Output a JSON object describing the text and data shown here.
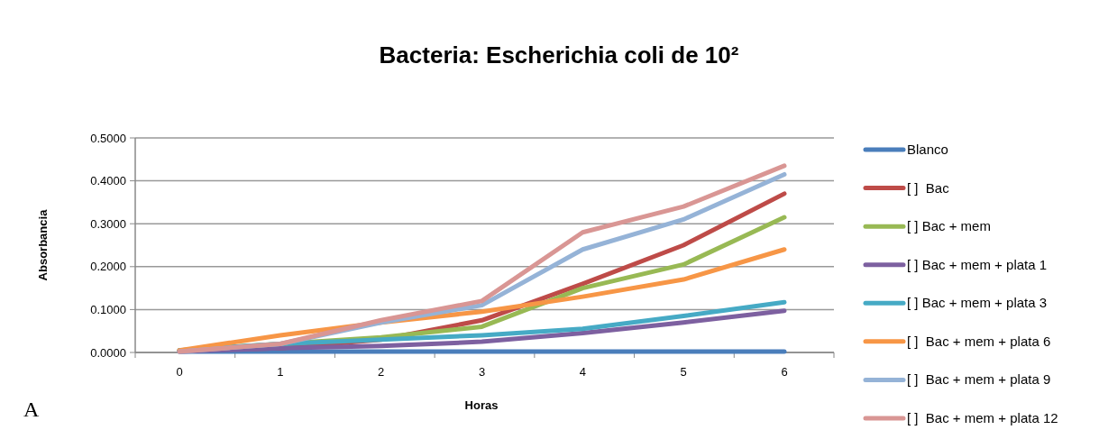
{
  "chart_data": {
    "type": "line",
    "title": "Bacteria: Escherichia coli de 10²",
    "xlabel": "Horas",
    "ylabel": "Absorbancia",
    "categories": [
      "0",
      "1",
      "2",
      "3",
      "4",
      "5",
      "6"
    ],
    "ylim": [
      0,
      0.5
    ],
    "yticks": [
      {
        "value": 0,
        "label": "0.0000"
      },
      {
        "value": 0.1,
        "label": "0.1000"
      },
      {
        "value": 0.2,
        "label": "0.2000"
      },
      {
        "value": 0.3,
        "label": "0.3000"
      },
      {
        "value": 0.4,
        "label": "0.4000"
      },
      {
        "value": 0.5,
        "label": "0.5000"
      }
    ],
    "grid": "y",
    "legend": "right",
    "marker": "none",
    "line_style": "solid",
    "annotations": [
      "A"
    ],
    "series": [
      {
        "name": "Blanco",
        "color": "#4a7ebb",
        "values": [
          0.002,
          0.002,
          0.002,
          0.002,
          0.002,
          0.002,
          0.002
        ]
      },
      {
        "name": "[ ]  Bac",
        "color": "#be4b48",
        "values": [
          0.005,
          0.01,
          0.03,
          0.075,
          0.16,
          0.25,
          0.37
        ]
      },
      {
        "name": "[ ] Bac + mem",
        "color": "#98b954",
        "values": [
          0.005,
          0.02,
          0.035,
          0.06,
          0.15,
          0.205,
          0.315
        ]
      },
      {
        "name": "[ ] Bac + mem + plata 1",
        "color": "#7d60a0",
        "values": [
          0.002,
          0.01,
          0.015,
          0.025,
          0.045,
          0.07,
          0.097
        ]
      },
      {
        "name": "[ ] Bac + mem + plata 3",
        "color": "#46aac5",
        "values": [
          0.005,
          0.02,
          0.03,
          0.04,
          0.055,
          0.085,
          0.117
        ]
      },
      {
        "name": "[ ]  Bac + mem + plata 6",
        "color": "#f79646",
        "values": [
          0.005,
          0.04,
          0.07,
          0.095,
          0.13,
          0.17,
          0.24
        ]
      },
      {
        "name": "[ ]  Bac + mem + plata 9",
        "color": "#95b3d7",
        "values": [
          0.002,
          0.02,
          0.07,
          0.11,
          0.24,
          0.31,
          0.415
        ]
      },
      {
        "name": "[ ]  Bac + mem + plata 12",
        "color": "#d99694",
        "values": [
          0.002,
          0.02,
          0.075,
          0.12,
          0.28,
          0.34,
          0.435
        ]
      }
    ]
  }
}
